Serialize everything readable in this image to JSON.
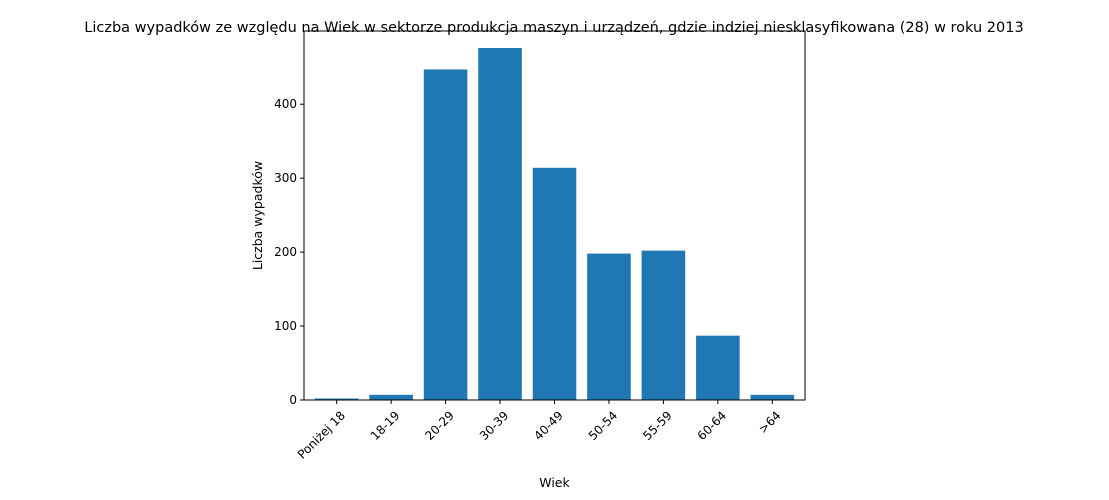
{
  "chart_data": {
    "type": "bar",
    "title": "Liczba wypadków ze względu na Wiek w sektorze produkcja maszyn i urządzeń, gdzie indziej niesklasyfikowana (28)  w roku 2013",
    "xlabel": "Wiek",
    "ylabel": "Liczba wypadków",
    "categories": [
      "Poniżej 18",
      "18-19",
      "20-29",
      "30-39",
      "40-49",
      "50-54",
      "55-59",
      "60-64",
      ">64"
    ],
    "values": [
      2,
      7,
      447,
      476,
      314,
      198,
      202,
      87,
      7
    ],
    "ylim": [
      0,
      499
    ],
    "yticks": [
      0,
      100,
      200,
      300,
      400
    ],
    "bar_color": "#1f77b4",
    "grid": false,
    "x_tick_rotation_deg": 45
  }
}
